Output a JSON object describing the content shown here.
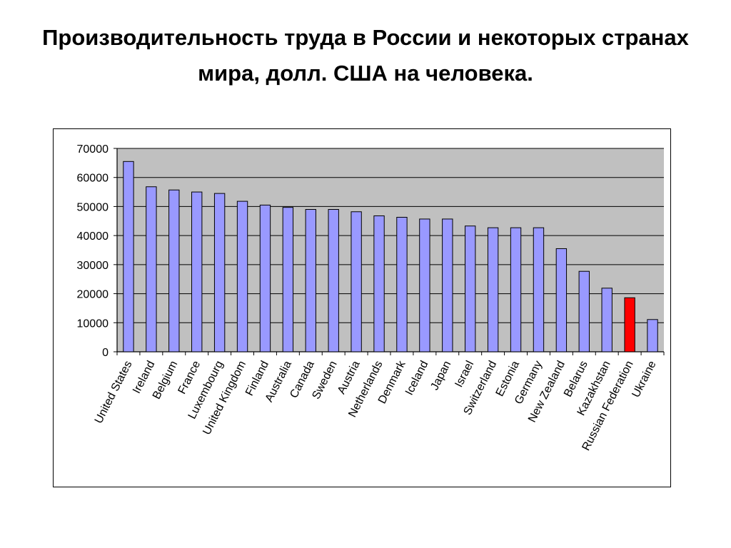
{
  "slide": {
    "title": "Производительность труда в России и некоторых странах мира, долл. США на человека."
  },
  "colors": {
    "bar": "#9999ff",
    "highlight_bar": "#ff0000",
    "plot_background": "#c0c0c0",
    "gridline": "#000000",
    "bar_border": "#000000"
  },
  "chart_data": {
    "type": "bar",
    "title": "",
    "xlabel": "",
    "ylabel": "",
    "ylim": [
      0,
      70000
    ],
    "yticks": [
      0,
      10000,
      20000,
      30000,
      40000,
      50000,
      60000,
      70000
    ],
    "grid": true,
    "legend": "none",
    "highlight_category": "Russian Federation",
    "categories": [
      "United States",
      "Ireland",
      "Belgium",
      "France",
      "Luxembourg",
      "United Kingdom",
      "Finland",
      "Australia",
      "Canada",
      "Sweden",
      "Austria",
      "Netherlands",
      "Denmark",
      "Iceland",
      "Japan",
      "Israel",
      "Switzerland",
      "Estonia",
      "Germany",
      "New Zealand",
      "Belarus",
      "Kazakhstan",
      "Russian Federation",
      "Ukraine"
    ],
    "values": [
      65500,
      56800,
      55700,
      55000,
      54500,
      51800,
      50500,
      49700,
      49000,
      49000,
      48200,
      46800,
      46300,
      45700,
      45700,
      43300,
      42700,
      42700,
      42700,
      35500,
      27700,
      21900,
      18600,
      11100
    ]
  }
}
